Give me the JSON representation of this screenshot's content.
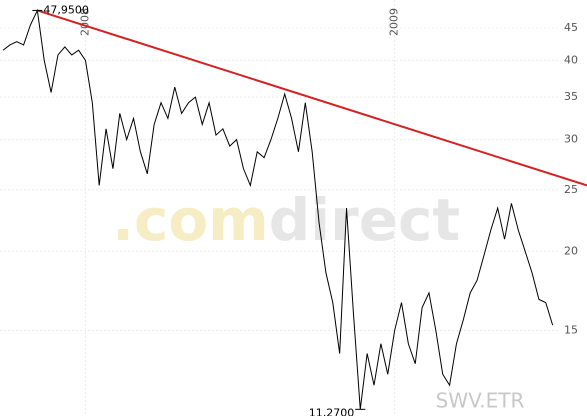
{
  "chart_data": {
    "type": "line",
    "symbol": "SWV.ETR",
    "watermark": [
      ".com",
      "direct"
    ],
    "log_y": true,
    "grid": true,
    "x": [
      0,
      1,
      2,
      3,
      4,
      5,
      6,
      7,
      8,
      9,
      10,
      11,
      12,
      13,
      14,
      15,
      16,
      17,
      18,
      19,
      20,
      21,
      22,
      23,
      24,
      25,
      26,
      27,
      28,
      29,
      30,
      31,
      32,
      33,
      34,
      35,
      36,
      37,
      38,
      39,
      40,
      41,
      42,
      43,
      44,
      45,
      46,
      47,
      48,
      49,
      50,
      51,
      52,
      53,
      54,
      55,
      56,
      57,
      58,
      59,
      60,
      61,
      62,
      63,
      64,
      65,
      66,
      67,
      68,
      69,
      70,
      71,
      72,
      73,
      74,
      75,
      76,
      77,
      78,
      79,
      80
    ],
    "xlim": [
      0,
      85
    ],
    "xticks": [
      {
        "value": 12,
        "label": "2008"
      },
      {
        "value": 57,
        "label": "2009"
      }
    ],
    "ylim": [
      11,
      49.8
    ],
    "yticks": [
      15,
      20,
      25,
      30,
      35,
      40,
      45
    ],
    "series": [
      {
        "color": "#000000",
        "values": [
          41.5,
          42.3,
          42.8,
          42.3,
          45.5,
          47.95,
          40,
          35.6,
          40.8,
          42,
          40.8,
          41.5,
          40,
          34.3,
          25.4,
          31.2,
          27,
          33,
          30,
          32.4,
          28.7,
          26.5,
          31.7,
          34.3,
          32.4,
          36.3,
          33,
          34.3,
          35,
          31.7,
          34.3,
          30.5,
          31.2,
          29.3,
          30,
          27,
          25.4,
          28.7,
          28.1,
          30,
          32.4,
          35.4,
          32.4,
          28.7,
          34.3,
          28.7,
          22.2,
          18.5,
          16.6,
          13.8,
          23.4,
          16,
          11.27,
          13.8,
          12.3,
          14.3,
          12.8,
          15,
          16.6,
          14.3,
          13.3,
          16.3,
          17.2,
          15,
          12.8,
          12.3,
          14.3,
          15.6,
          17.2,
          18,
          19.7,
          21.6,
          23.4,
          20.9,
          23.8,
          21.6,
          20,
          18.5,
          16.8,
          16.6,
          15.3
        ]
      }
    ],
    "trend_line": {
      "color": "#d42020",
      "x": [
        5,
        85
      ],
      "values": [
        47.95,
        25.4
      ]
    },
    "annotations": [
      {
        "text": "47,9500",
        "value": 47.95
      },
      {
        "text": "11,2700",
        "value": 11.27
      }
    ]
  }
}
